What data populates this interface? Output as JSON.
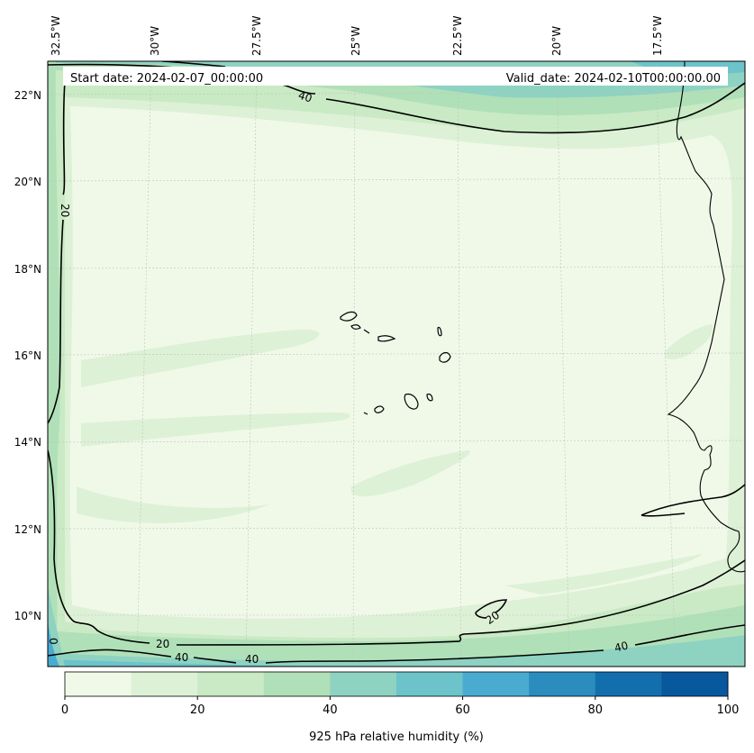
{
  "header": {
    "start_date": "Start date: 2024-02-07_00:00:00",
    "valid_date": "Valid_date: 2024-02-10T00:00:00.00"
  },
  "lon_ticks": [
    "32.5°W",
    "30°W",
    "27.5°W",
    "25°W",
    "22.5°W",
    "20°W",
    "17.5°W"
  ],
  "lat_ticks": [
    "22°N",
    "20°N",
    "18°N",
    "16°N",
    "14°N",
    "12°N",
    "10°N"
  ],
  "contour_labels": [
    "40",
    "20",
    "20",
    "40",
    "40",
    "20",
    "40",
    "0"
  ],
  "colorbar": {
    "label": "925 hPa relative humidity (%)",
    "tick_labels": [
      "0",
      "20",
      "40",
      "60",
      "80",
      "100"
    ],
    "levels": [
      0,
      10,
      20,
      30,
      40,
      50,
      60,
      70,
      80,
      90,
      100
    ],
    "colors": [
      "#f0f9e8",
      "#ddf1d6",
      "#c9eac4",
      "#b0e0b8",
      "#8ed2c2",
      "#6cc3ca",
      "#4aabd1",
      "#2b8cbe",
      "#136ead",
      "#08589e"
    ]
  }
}
